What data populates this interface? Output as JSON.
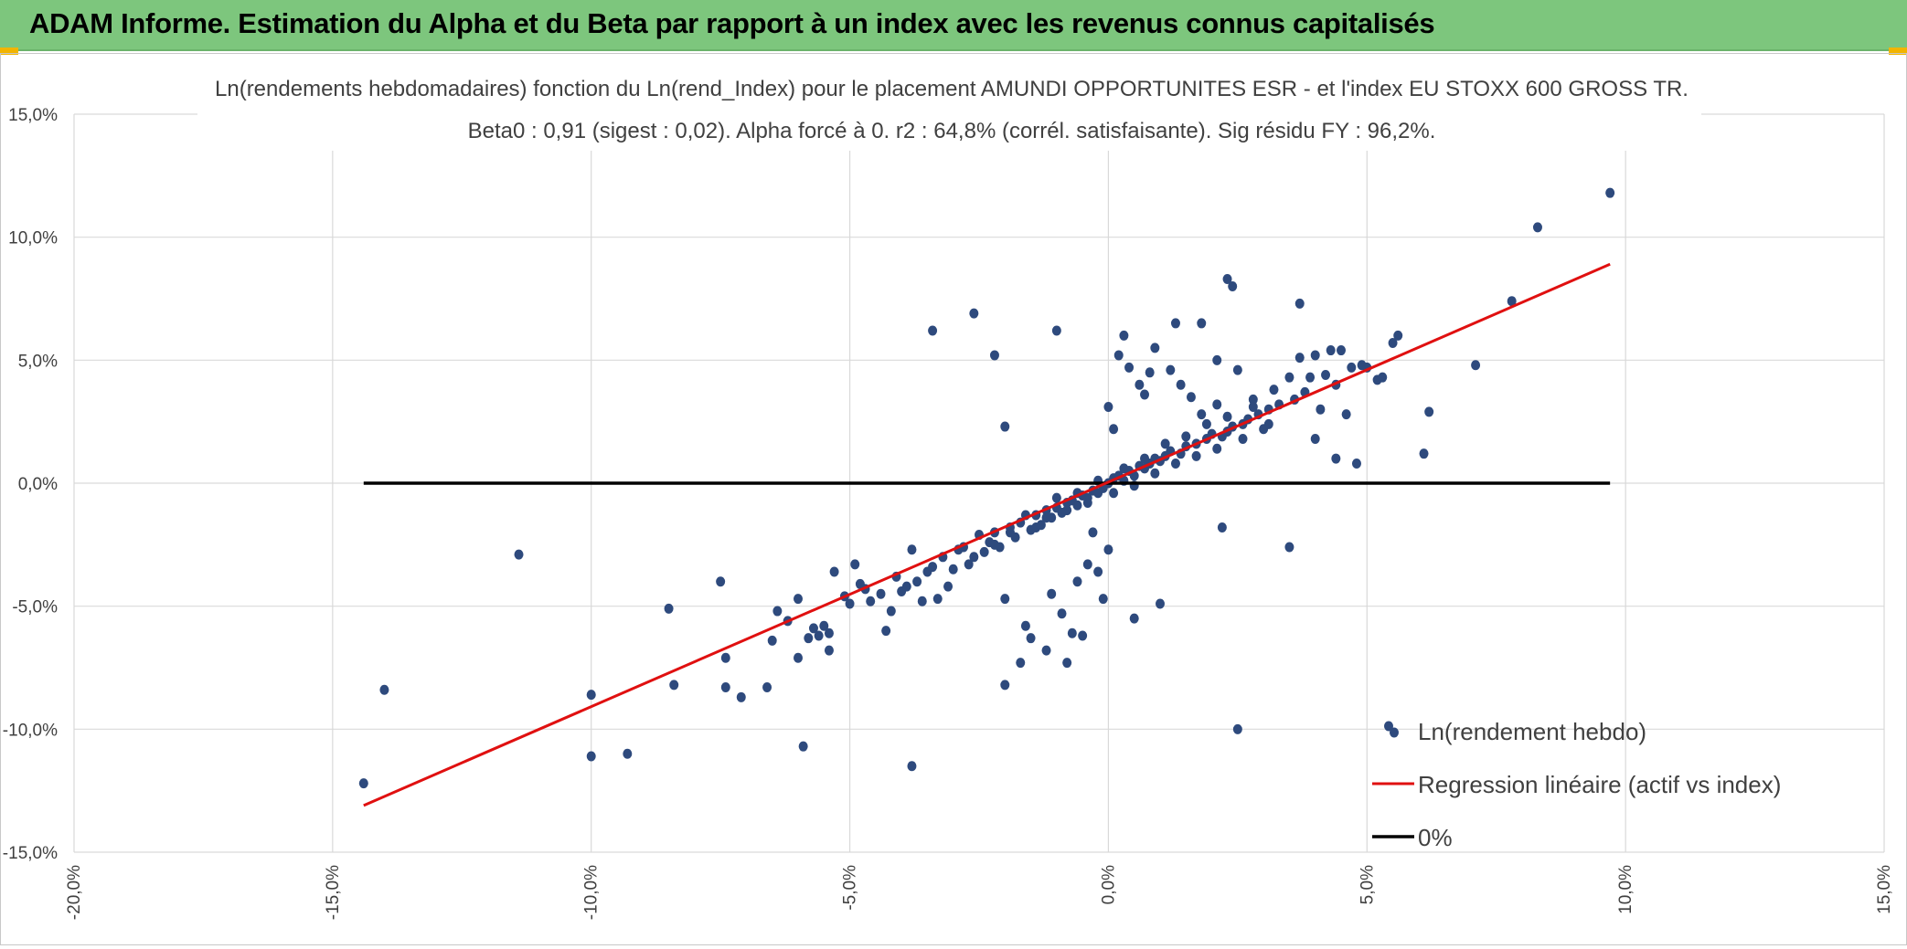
{
  "banner": {
    "title": "ADAM Informe. Estimation du Alpha et du Beta par rapport à un index avec les revenus connus capitalisés",
    "bg_color": "#7dc67d",
    "corner_color": "#f2b400"
  },
  "chart_data": {
    "type": "scatter",
    "title_line1": "Ln(rendements hebdomadaires) fonction du Ln(rend_Index) pour le placement AMUNDI OPPORTUNITES ESR - et l'index EU STOXX 600 GROSS TR.",
    "title_line2": "Beta0 : 0,91 (sigest : 0,02). Alpha forcé à 0. r2 : 64,8% (corrél. satisfaisante). Sig résidu FY : 96,2%.",
    "xlim": [
      -0.2,
      0.15
    ],
    "ylim": [
      -0.15,
      0.15
    ],
    "x_ticks": [
      -0.2,
      -0.15,
      -0.1,
      -0.05,
      0.0,
      0.05,
      0.1,
      0.15
    ],
    "y_ticks": [
      0.15,
      0.1,
      0.05,
      0.0,
      -0.05,
      -0.1,
      -0.15
    ],
    "x_tick_labels": [
      "-20,0%",
      "-15,0%",
      "-10,0%",
      "-5,0%",
      "0,0%",
      "5,0%",
      "10,0%",
      "15,0%"
    ],
    "y_tick_labels": [
      "15,0%",
      "10,0%",
      "5,0%",
      "0,0%",
      "-5,0%",
      "-10,0%",
      "-15,0%"
    ],
    "grid": true,
    "legend_placement": "bottom-right",
    "series": [
      {
        "name": "Ln(rendement hebdo)",
        "kind": "scatter",
        "color": "#2e4a7d",
        "points": [
          [
            -0.144,
            -0.122
          ],
          [
            -0.14,
            -0.084
          ],
          [
            -0.114,
            -0.029
          ],
          [
            -0.1,
            -0.086
          ],
          [
            -0.1,
            -0.111
          ],
          [
            -0.093,
            -0.11
          ],
          [
            -0.085,
            -0.051
          ],
          [
            -0.084,
            -0.082
          ],
          [
            -0.075,
            -0.04
          ],
          [
            -0.074,
            -0.071
          ],
          [
            -0.074,
            -0.083
          ],
          [
            -0.071,
            -0.087
          ],
          [
            -0.066,
            -0.083
          ],
          [
            -0.065,
            -0.064
          ],
          [
            -0.064,
            -0.052
          ],
          [
            -0.062,
            -0.056
          ],
          [
            -0.06,
            -0.047
          ],
          [
            -0.06,
            -0.071
          ],
          [
            -0.059,
            -0.107
          ],
          [
            -0.058,
            -0.063
          ],
          [
            -0.057,
            -0.059
          ],
          [
            -0.056,
            -0.062
          ],
          [
            -0.055,
            -0.058
          ],
          [
            -0.054,
            -0.061
          ],
          [
            -0.054,
            -0.068
          ],
          [
            -0.053,
            -0.036
          ],
          [
            -0.051,
            -0.046
          ],
          [
            -0.05,
            -0.049
          ],
          [
            -0.049,
            -0.033
          ],
          [
            -0.048,
            -0.041
          ],
          [
            -0.047,
            -0.043
          ],
          [
            -0.046,
            -0.048
          ],
          [
            -0.044,
            -0.045
          ],
          [
            -0.043,
            -0.06
          ],
          [
            -0.042,
            -0.052
          ],
          [
            -0.041,
            -0.038
          ],
          [
            -0.04,
            -0.044
          ],
          [
            -0.039,
            -0.042
          ],
          [
            -0.038,
            -0.027
          ],
          [
            -0.038,
            -0.115
          ],
          [
            -0.037,
            -0.04
          ],
          [
            -0.036,
            -0.048
          ],
          [
            -0.035,
            -0.036
          ],
          [
            -0.034,
            -0.034
          ],
          [
            -0.034,
            0.062
          ],
          [
            -0.033,
            -0.047
          ],
          [
            -0.032,
            -0.03
          ],
          [
            -0.031,
            -0.042
          ],
          [
            -0.03,
            -0.035
          ],
          [
            -0.029,
            -0.027
          ],
          [
            -0.028,
            -0.026
          ],
          [
            -0.027,
            -0.033
          ],
          [
            -0.026,
            0.069
          ],
          [
            -0.026,
            -0.03
          ],
          [
            -0.025,
            -0.021
          ],
          [
            -0.024,
            -0.028
          ],
          [
            -0.023,
            -0.024
          ],
          [
            -0.022,
            0.052
          ],
          [
            -0.022,
            -0.02
          ],
          [
            -0.021,
            -0.026
          ],
          [
            -0.02,
            0.023
          ],
          [
            -0.02,
            -0.082
          ],
          [
            -0.02,
            -0.047
          ],
          [
            -0.019,
            -0.018
          ],
          [
            -0.018,
            -0.022
          ],
          [
            -0.017,
            -0.016
          ],
          [
            -0.017,
            -0.073
          ],
          [
            -0.016,
            -0.058
          ],
          [
            -0.015,
            -0.019
          ],
          [
            -0.015,
            -0.063
          ],
          [
            -0.014,
            -0.013
          ],
          [
            -0.013,
            -0.017
          ],
          [
            -0.012,
            -0.011
          ],
          [
            -0.012,
            -0.068
          ],
          [
            -0.011,
            -0.014
          ],
          [
            -0.011,
            -0.045
          ],
          [
            -0.01,
            -0.01
          ],
          [
            -0.01,
            0.062
          ],
          [
            -0.009,
            -0.012
          ],
          [
            -0.009,
            -0.053
          ],
          [
            -0.008,
            -0.008
          ],
          [
            -0.008,
            -0.073
          ],
          [
            -0.007,
            -0.007
          ],
          [
            -0.007,
            -0.061
          ],
          [
            -0.006,
            -0.009
          ],
          [
            -0.006,
            -0.04
          ],
          [
            -0.005,
            -0.005
          ],
          [
            -0.005,
            -0.062
          ],
          [
            -0.004,
            -0.006
          ],
          [
            -0.004,
            -0.033
          ],
          [
            -0.003,
            -0.003
          ],
          [
            -0.003,
            -0.02
          ],
          [
            -0.002,
            -0.004
          ],
          [
            -0.002,
            -0.036
          ],
          [
            -0.001,
            -0.002
          ],
          [
            -0.001,
            -0.047
          ],
          [
            0.0,
            0.0
          ],
          [
            0.0,
            0.031
          ],
          [
            0.0,
            -0.027
          ],
          [
            0.001,
            0.002
          ],
          [
            0.001,
            0.022
          ],
          [
            0.002,
            0.003
          ],
          [
            0.002,
            0.052
          ],
          [
            0.003,
            0.001
          ],
          [
            0.003,
            0.06
          ],
          [
            0.004,
            0.005
          ],
          [
            0.004,
            0.047
          ],
          [
            0.005,
            0.003
          ],
          [
            0.005,
            -0.055
          ],
          [
            0.006,
            0.007
          ],
          [
            0.006,
            0.04
          ],
          [
            0.007,
            0.006
          ],
          [
            0.007,
            0.036
          ],
          [
            0.008,
            0.008
          ],
          [
            0.008,
            0.045
          ],
          [
            0.009,
            0.01
          ],
          [
            0.009,
            0.055
          ],
          [
            0.01,
            0.009
          ],
          [
            0.01,
            -0.049
          ],
          [
            0.011,
            0.011
          ],
          [
            0.012,
            0.046
          ],
          [
            0.012,
            0.013
          ],
          [
            0.013,
            0.065
          ],
          [
            0.014,
            0.012
          ],
          [
            0.014,
            0.04
          ],
          [
            0.015,
            0.015
          ],
          [
            0.016,
            0.035
          ],
          [
            0.017,
            0.016
          ],
          [
            0.018,
            0.065
          ],
          [
            0.018,
            0.028
          ],
          [
            0.019,
            0.018
          ],
          [
            0.02,
            0.02
          ],
          [
            0.021,
            0.05
          ],
          [
            0.021,
            0.032
          ],
          [
            0.022,
            0.019
          ],
          [
            0.022,
            -0.018
          ],
          [
            0.023,
            0.083
          ],
          [
            0.023,
            0.021
          ],
          [
            0.024,
            0.08
          ],
          [
            0.024,
            0.023
          ],
          [
            0.025,
            -0.1
          ],
          [
            0.025,
            0.046
          ],
          [
            0.026,
            0.024
          ],
          [
            0.027,
            0.026
          ],
          [
            0.028,
            0.034
          ],
          [
            0.029,
            0.028
          ],
          [
            0.03,
            0.022
          ],
          [
            0.031,
            0.03
          ],
          [
            0.032,
            0.038
          ],
          [
            0.033,
            0.032
          ],
          [
            0.035,
            0.043
          ],
          [
            0.035,
            -0.026
          ],
          [
            0.036,
            0.034
          ],
          [
            0.037,
            0.073
          ],
          [
            0.037,
            0.051
          ],
          [
            0.038,
            0.037
          ],
          [
            0.039,
            0.043
          ],
          [
            0.04,
            0.018
          ],
          [
            0.04,
            0.052
          ],
          [
            0.041,
            0.03
          ],
          [
            0.042,
            0.044
          ],
          [
            0.043,
            0.054
          ],
          [
            0.044,
            0.04
          ],
          [
            0.044,
            0.01
          ],
          [
            0.045,
            0.054
          ],
          [
            0.046,
            0.028
          ],
          [
            0.047,
            0.047
          ],
          [
            0.048,
            0.008
          ],
          [
            0.049,
            0.048
          ],
          [
            0.05,
            0.047
          ],
          [
            0.052,
            0.042
          ],
          [
            0.053,
            0.043
          ],
          [
            0.055,
            0.057
          ],
          [
            0.056,
            0.06
          ],
          [
            0.061,
            0.012
          ],
          [
            0.062,
            0.029
          ],
          [
            0.071,
            0.048
          ],
          [
            0.078,
            0.074
          ],
          [
            0.083,
            0.104
          ],
          [
            0.097,
            0.118
          ],
          [
            -0.022,
            -0.025
          ],
          [
            -0.019,
            -0.02
          ],
          [
            -0.016,
            -0.013
          ],
          [
            -0.014,
            -0.018
          ],
          [
            -0.012,
            -0.014
          ],
          [
            -0.01,
            -0.006
          ],
          [
            -0.008,
            -0.011
          ],
          [
            -0.006,
            -0.004
          ],
          [
            -0.004,
            -0.008
          ],
          [
            -0.002,
            0.001
          ],
          [
            0.001,
            -0.004
          ],
          [
            0.003,
            0.006
          ],
          [
            0.005,
            -0.001
          ],
          [
            0.007,
            0.01
          ],
          [
            0.009,
            0.004
          ],
          [
            0.011,
            0.016
          ],
          [
            0.013,
            0.008
          ],
          [
            0.015,
            0.019
          ],
          [
            0.017,
            0.011
          ],
          [
            0.019,
            0.024
          ],
          [
            0.021,
            0.014
          ],
          [
            0.023,
            0.027
          ],
          [
            0.026,
            0.018
          ],
          [
            0.028,
            0.031
          ],
          [
            0.031,
            0.024
          ]
        ]
      },
      {
        "name": "Regression linéaire (actif vs index)",
        "kind": "line",
        "color": "#e01010",
        "points": [
          [
            -0.144,
            -0.131
          ],
          [
            0.097,
            0.089
          ]
        ]
      },
      {
        "name": "0%",
        "kind": "line",
        "color": "#000000",
        "points": [
          [
            -0.144,
            0.0
          ],
          [
            0.097,
            0.0
          ]
        ]
      }
    ]
  }
}
